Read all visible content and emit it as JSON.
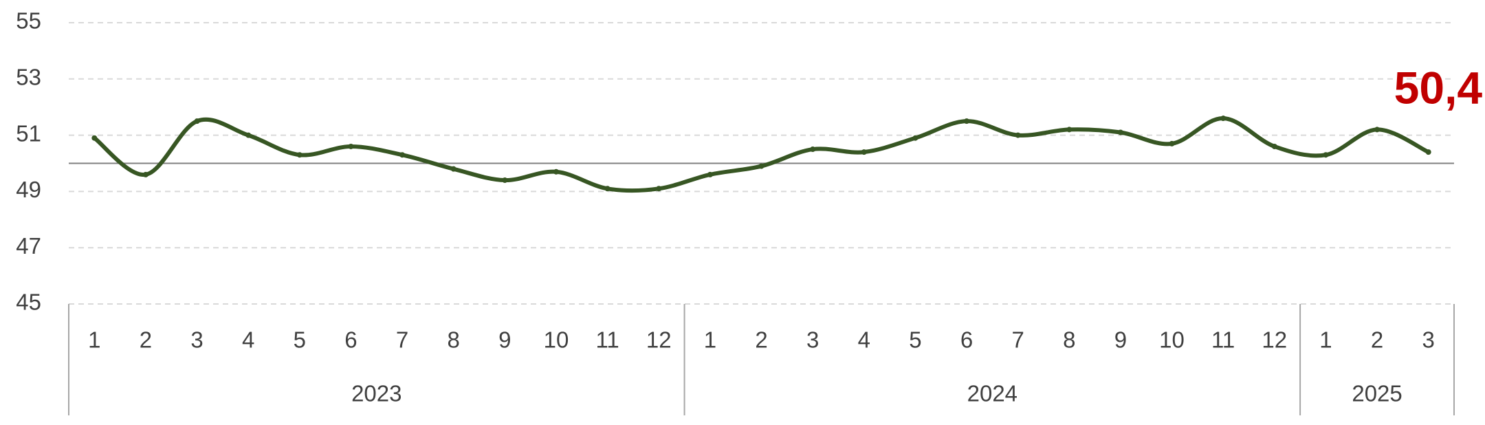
{
  "chart_data": {
    "type": "line",
    "categories": [
      "1",
      "2",
      "3",
      "4",
      "5",
      "6",
      "7",
      "8",
      "9",
      "10",
      "11",
      "12",
      "1",
      "2",
      "3",
      "4",
      "5",
      "6",
      "7",
      "8",
      "9",
      "10",
      "11",
      "12",
      "1",
      "2",
      "3"
    ],
    "groups": [
      "2023",
      "2024",
      "2025"
    ],
    "series": [
      {
        "color": "#375623",
        "values": [
          50.9,
          49.6,
          51.5,
          51.0,
          50.3,
          50.6,
          50.3,
          49.8,
          49.4,
          49.7,
          49.1,
          49.1,
          49.6,
          49.9,
          50.5,
          50.4,
          50.9,
          51.5,
          51.0,
          51.2,
          51.1,
          50.7,
          51.6,
          50.6,
          50.3,
          51.2,
          50.4
        ],
        "value_labels": [
          null,
          null,
          null,
          null,
          null,
          null,
          null,
          null,
          null,
          null,
          null,
          null,
          null,
          null,
          null,
          null,
          null,
          null,
          null,
          null,
          null,
          null,
          null,
          null,
          null,
          null,
          "50,4"
        ],
        "label_color": "#c00000"
      }
    ],
    "reference_line": 50,
    "ylim": [
      45,
      55
    ],
    "yticks": [
      45,
      47,
      49,
      51,
      53,
      55
    ],
    "grid": true
  }
}
